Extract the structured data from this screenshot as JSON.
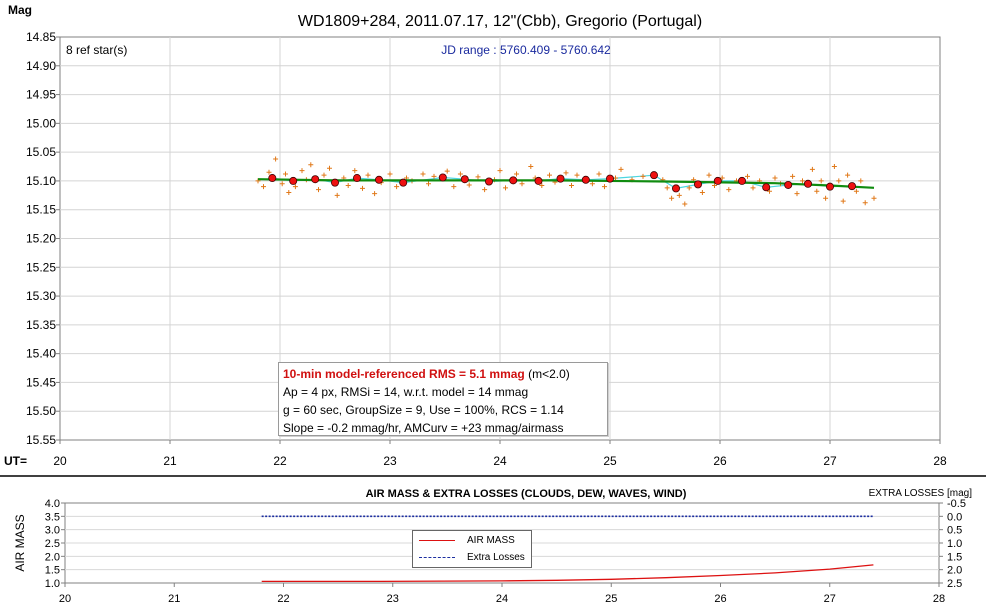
{
  "chart_data": [
    {
      "type": "scatter",
      "title": "WD1809+284, 2011.07.17, 12\"(Cbb), Gregorio (Portugal)",
      "ylabel": "Mag",
      "xlabel": "UT=",
      "x_ticks": [
        "20",
        "21",
        "22",
        "23",
        "24",
        "25",
        "26",
        "27",
        "28"
      ],
      "y_ticks": [
        "14.85",
        "14.90",
        "14.95",
        "15.00",
        "15.05",
        "15.10",
        "15.15",
        "15.20",
        "15.25",
        "15.30",
        "15.35",
        "15.40",
        "15.45",
        "15.50",
        "15.55"
      ],
      "xlim": [
        20,
        28
      ],
      "ylim": [
        15.55,
        14.85
      ],
      "annotations": {
        "ref_stars": "8 ref star(s)",
        "jd_range": "JD range : 5760.409 - 5760.642"
      },
      "info_box": {
        "rms_main": "10-min model-referenced RMS = 5.1 mmag",
        "rms_suffix": "(m<2.0)",
        "line2": "Ap = 4 px, RMSi = 14, w.r.t. model = 14 mmag",
        "line3": "g = 60 sec, GroupSize = 9, Use = 100%, RCS = 1.14",
        "line4": "Slope = -0.2 mmag/hr, AMCurv = +23 mmag/airmass"
      },
      "colors": {
        "individual": "#e07818",
        "group": "#ee1111",
        "model": "#108c10",
        "trend": "#4dd6e0"
      },
      "series": [
        {
          "values": [
            [
              21.93,
              15.095
            ],
            [
              22.12,
              15.1
            ],
            [
              22.32,
              15.097
            ],
            [
              22.5,
              15.103
            ],
            [
              22.7,
              15.095
            ],
            [
              22.9,
              15.098
            ],
            [
              23.12,
              15.103
            ],
            [
              23.48,
              15.094
            ],
            [
              23.68,
              15.097
            ],
            [
              23.9,
              15.101
            ],
            [
              24.12,
              15.099
            ],
            [
              24.35,
              15.1
            ],
            [
              24.55,
              15.096
            ],
            [
              24.78,
              15.098
            ],
            [
              25.0,
              15.096
            ],
            [
              25.4,
              15.09
            ],
            [
              25.6,
              15.113
            ],
            [
              25.8,
              15.106
            ],
            [
              25.98,
              15.1
            ],
            [
              26.2,
              15.1
            ],
            [
              26.42,
              15.111
            ],
            [
              26.62,
              15.107
            ],
            [
              26.8,
              15.105
            ],
            [
              27.0,
              15.11
            ],
            [
              27.2,
              15.109
            ]
          ]
        },
        {
          "values": [
            [
              21.8,
              15.1
            ],
            [
              21.85,
              15.11
            ],
            [
              21.9,
              15.085
            ],
            [
              21.96,
              15.062
            ],
            [
              22.02,
              15.105
            ],
            [
              22.05,
              15.088
            ],
            [
              22.08,
              15.12
            ],
            [
              22.14,
              15.11
            ],
            [
              22.2,
              15.082
            ],
            [
              22.24,
              15.098
            ],
            [
              22.28,
              15.072
            ],
            [
              22.35,
              15.115
            ],
            [
              22.4,
              15.09
            ],
            [
              22.45,
              15.078
            ],
            [
              22.52,
              15.125
            ],
            [
              22.58,
              15.095
            ],
            [
              22.62,
              15.108
            ],
            [
              22.68,
              15.082
            ],
            [
              22.75,
              15.113
            ],
            [
              22.8,
              15.09
            ],
            [
              22.86,
              15.122
            ],
            [
              22.92,
              15.103
            ],
            [
              23.0,
              15.088
            ],
            [
              23.06,
              15.11
            ],
            [
              23.15,
              15.095
            ],
            [
              23.2,
              15.1
            ],
            [
              23.3,
              15.088
            ],
            [
              23.35,
              15.105
            ],
            [
              23.4,
              15.092
            ],
            [
              23.52,
              15.083
            ],
            [
              23.58,
              15.11
            ],
            [
              23.64,
              15.088
            ],
            [
              23.72,
              15.107
            ],
            [
              23.8,
              15.093
            ],
            [
              23.86,
              15.115
            ],
            [
              23.95,
              15.098
            ],
            [
              24.0,
              15.082
            ],
            [
              24.05,
              15.112
            ],
            [
              24.15,
              15.088
            ],
            [
              24.2,
              15.105
            ],
            [
              24.28,
              15.075
            ],
            [
              24.32,
              15.095
            ],
            [
              24.38,
              15.108
            ],
            [
              24.45,
              15.09
            ],
            [
              24.5,
              15.102
            ],
            [
              24.6,
              15.086
            ],
            [
              24.65,
              15.108
            ],
            [
              24.7,
              15.09
            ],
            [
              24.84,
              15.105
            ],
            [
              24.9,
              15.088
            ],
            [
              24.95,
              15.11
            ],
            [
              25.05,
              15.095
            ],
            [
              25.1,
              15.08
            ],
            [
              25.2,
              15.098
            ],
            [
              25.3,
              15.092
            ],
            [
              25.48,
              15.098
            ],
            [
              25.52,
              15.112
            ],
            [
              25.56,
              15.13
            ],
            [
              25.63,
              15.125
            ],
            [
              25.68,
              15.14
            ],
            [
              25.72,
              15.112
            ],
            [
              25.76,
              15.098
            ],
            [
              25.84,
              15.12
            ],
            [
              25.9,
              15.09
            ],
            [
              25.95,
              15.108
            ],
            [
              26.02,
              15.095
            ],
            [
              26.08,
              15.115
            ],
            [
              26.15,
              15.1
            ],
            [
              26.25,
              15.092
            ],
            [
              26.3,
              15.112
            ],
            [
              26.36,
              15.1
            ],
            [
              26.45,
              15.118
            ],
            [
              26.5,
              15.095
            ],
            [
              26.55,
              15.105
            ],
            [
              26.66,
              15.092
            ],
            [
              26.7,
              15.122
            ],
            [
              26.75,
              15.1
            ],
            [
              26.84,
              15.08
            ],
            [
              26.88,
              15.118
            ],
            [
              26.92,
              15.1
            ],
            [
              26.96,
              15.13
            ],
            [
              27.04,
              15.075
            ],
            [
              27.08,
              15.1
            ],
            [
              27.12,
              15.135
            ],
            [
              27.16,
              15.09
            ],
            [
              27.24,
              15.118
            ],
            [
              27.28,
              15.1
            ],
            [
              27.32,
              15.138
            ],
            [
              27.4,
              15.13
            ]
          ]
        },
        {
          "values": [
            [
              21.8,
              15.097
            ],
            [
              22.5,
              15.099
            ],
            [
              23.5,
              15.099
            ],
            [
              24.5,
              15.099
            ],
            [
              25.5,
              15.101
            ],
            [
              26.5,
              15.104
            ],
            [
              27.0,
              15.108
            ],
            [
              27.4,
              15.112
            ]
          ]
        }
      ]
    },
    {
      "type": "line",
      "title": "AIR MASS & EXTRA LOSSES (CLOUDS, DEW, WAVES, WIND)",
      "ylabel": "AIR MASS",
      "y2label": "EXTRA LOSSES [mag]",
      "x_ticks": [
        "20",
        "21",
        "22",
        "23",
        "24",
        "25",
        "26",
        "27",
        "28"
      ],
      "y_ticks": [
        "4.0",
        "3.5",
        "3.0",
        "2.5",
        "2.0",
        "1.5",
        "1.0"
      ],
      "y2_ticks": [
        "-0.5",
        "0.0",
        "0.5",
        "1.0",
        "1.5",
        "2.0",
        "2.5"
      ],
      "xlim": [
        20,
        28
      ],
      "ylim": [
        1.0,
        4.0
      ],
      "y2lim": [
        2.5,
        -0.5
      ],
      "legend_position": "center",
      "colors": {
        "air_mass": "#dd1111",
        "extra_losses": "#1c2ea0"
      },
      "series": [
        {
          "name": "AIR MASS",
          "values": [
            [
              21.8,
              1.06
            ],
            [
              22.8,
              1.06
            ],
            [
              23.45,
              1.07
            ],
            [
              24.0,
              1.08
            ],
            [
              24.5,
              1.1
            ],
            [
              25.0,
              1.14
            ],
            [
              25.5,
              1.2
            ],
            [
              26.0,
              1.28
            ],
            [
              26.5,
              1.38
            ],
            [
              27.0,
              1.52
            ],
            [
              27.4,
              1.68
            ]
          ]
        },
        {
          "name": "Extra Losses",
          "values": [
            [
              21.8,
              0.0
            ],
            [
              27.4,
              0.0
            ]
          ]
        }
      ]
    }
  ]
}
